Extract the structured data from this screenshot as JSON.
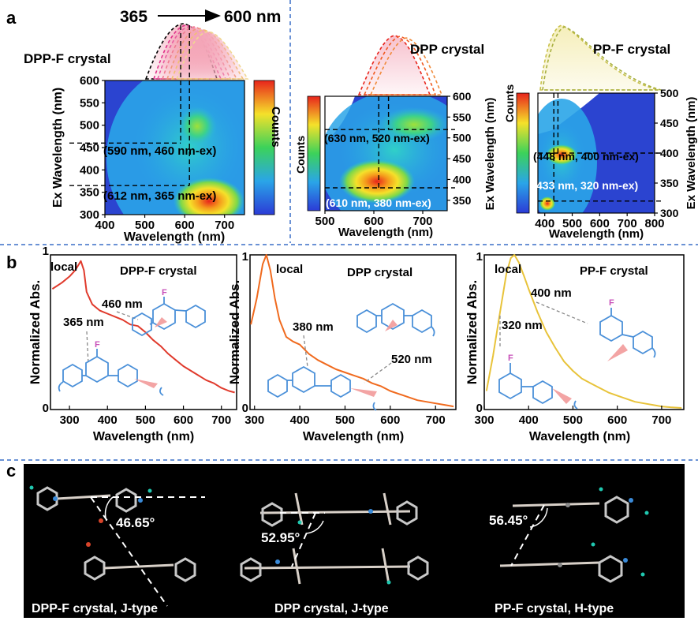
{
  "panel_letters": {
    "a": "a",
    "b": "b",
    "c": "c"
  },
  "colors": {
    "divider": "#3a6fc7",
    "dpp_f_line": "#e03a2c",
    "dpp_line": "#f06a1e",
    "pp_f_line": "#e8c33a",
    "molecule": "#4a90d9",
    "fluorine": "#c74fb8",
    "dipole": "#f29a9a",
    "hydrogen": "#3aa13a"
  },
  "chart_data": [
    {
      "type": "heatmap",
      "id": "a1",
      "title": "DPP-F crystal",
      "sweep": {
        "start": "365",
        "end": "600 nm"
      },
      "xlabel": "Wavelength (nm)",
      "ylabel": "Ex Wavelength (nm)",
      "colorbar_label": "Counts",
      "xlim": [
        400,
        750
      ],
      "ylim": [
        300,
        600
      ],
      "xticks": [
        400,
        500,
        600,
        700
      ],
      "yticks": [
        300,
        350,
        400,
        450,
        500,
        550,
        600
      ],
      "annotations": [
        "(590 nm, 460 nm-ex)",
        "(612 nm, 365 nm-ex)"
      ],
      "peaks": [
        {
          "em": 612,
          "ex": 365
        },
        {
          "em": 590,
          "ex": 460
        }
      ]
    },
    {
      "type": "heatmap",
      "id": "a2",
      "title": "DPP crystal",
      "xlabel": "Wavelength (nm)",
      "ylabel": "Ex Wavelength (nm)",
      "colorbar_label": "Counts",
      "xlim": [
        500,
        750
      ],
      "ylim": [
        325,
        600
      ],
      "xticks": [
        500,
        600,
        700
      ],
      "yticks": [
        350,
        400,
        450,
        500,
        550,
        600
      ],
      "annotations": [
        "(630 nm, 520 nm-ex)",
        "(610 nm, 380 nm-ex)"
      ],
      "peaks": [
        {
          "em": 610,
          "ex": 380
        },
        {
          "em": 630,
          "ex": 520
        }
      ]
    },
    {
      "type": "heatmap",
      "id": "a3",
      "title": "PP-F crystal",
      "xlabel": "Wavelength (nm)",
      "ylabel": "Ex Wavelength (nm)",
      "colorbar_label": "Counts",
      "xlim": [
        375,
        800
      ],
      "ylim": [
        300,
        500
      ],
      "xticks": [
        400,
        500,
        600,
        700,
        800
      ],
      "yticks": [
        300,
        350,
        400,
        450,
        500
      ],
      "annotations": [
        "(448 nm, 400 nm-ex)",
        "433 nm, 320 nm-ex)"
      ],
      "peaks": [
        {
          "em": 448,
          "ex": 400
        },
        {
          "em": 433,
          "ex": 320
        }
      ]
    },
    {
      "type": "line",
      "id": "b1",
      "title": "DPP-F crystal",
      "xlabel": "Wavelength (nm)",
      "ylabel": "Normalized Abs.",
      "xlim": [
        250,
        740
      ],
      "ylim": [
        0,
        1
      ],
      "xticks": [
        300,
        400,
        500,
        600,
        700
      ],
      "ytick_labels": [
        "0",
        "1"
      ],
      "annotations": {
        "local": "local",
        "band1": "460 nm",
        "band2": "365 nm"
      },
      "x": [
        255,
        280,
        300,
        315,
        330,
        338,
        345,
        360,
        380,
        400,
        420,
        440,
        460,
        480,
        500,
        520,
        540,
        560,
        580,
        600,
        620,
        640,
        660,
        680,
        700,
        720,
        735
      ],
      "y": [
        0.78,
        0.82,
        0.86,
        0.9,
        0.96,
        0.9,
        0.76,
        0.68,
        0.64,
        0.62,
        0.6,
        0.58,
        0.55,
        0.54,
        0.5,
        0.45,
        0.41,
        0.36,
        0.32,
        0.28,
        0.25,
        0.22,
        0.19,
        0.17,
        0.14,
        0.12,
        0.11
      ]
    },
    {
      "type": "line",
      "id": "b2",
      "title": "DPP crystal",
      "xlabel": "Wavelength (nm)",
      "ylabel": "Normalized Abs.",
      "xlim": [
        290,
        745
      ],
      "ylim": [
        0,
        1
      ],
      "xticks": [
        300,
        400,
        500,
        600,
        700
      ],
      "ytick_labels": [
        "0",
        "1"
      ],
      "annotations": {
        "local": "local",
        "band1": "380 nm",
        "band2": "520 nm"
      },
      "x": [
        292,
        305,
        318,
        326,
        335,
        345,
        355,
        370,
        385,
        400,
        420,
        440,
        460,
        480,
        500,
        520,
        540,
        560,
        580,
        600,
        620,
        640,
        660,
        680,
        700,
        720,
        740
      ],
      "y": [
        0.55,
        0.72,
        0.94,
        1.0,
        0.9,
        0.72,
        0.58,
        0.47,
        0.44,
        0.42,
        0.36,
        0.32,
        0.29,
        0.26,
        0.24,
        0.22,
        0.2,
        0.17,
        0.15,
        0.12,
        0.1,
        0.08,
        0.06,
        0.05,
        0.04,
        0.03,
        0.02
      ]
    },
    {
      "type": "line",
      "id": "b3",
      "title": "PP-F crystal",
      "xlabel": "Wavelength (nm)",
      "ylabel": "Normalized Abs.",
      "xlim": [
        300,
        750
      ],
      "ylim": [
        0,
        1
      ],
      "xticks": [
        300,
        400,
        500,
        600,
        700
      ],
      "ytick_labels": [
        "0",
        "1"
      ],
      "annotations": {
        "local": "local",
        "band1": "400 nm",
        "band2": "320 nm"
      },
      "x": [
        305,
        320,
        335,
        350,
        360,
        368,
        378,
        390,
        400,
        420,
        440,
        460,
        480,
        500,
        520,
        540,
        560,
        580,
        600,
        620,
        640,
        660,
        680,
        700,
        720,
        745
      ],
      "y": [
        0.12,
        0.35,
        0.62,
        0.88,
        0.98,
        1.0,
        0.95,
        0.86,
        0.78,
        0.63,
        0.5,
        0.4,
        0.31,
        0.25,
        0.2,
        0.17,
        0.14,
        0.11,
        0.09,
        0.07,
        0.05,
        0.04,
        0.03,
        0.02,
        0.015,
        0.01
      ]
    }
  ],
  "crystals": [
    {
      "caption": "DPP-F crystal, J-type",
      "angle": "46.65°"
    },
    {
      "caption": "DPP crystal, J-type",
      "angle": "52.95°"
    },
    {
      "caption": "PP-F crystal, H-type",
      "angle": "56.45°"
    }
  ]
}
